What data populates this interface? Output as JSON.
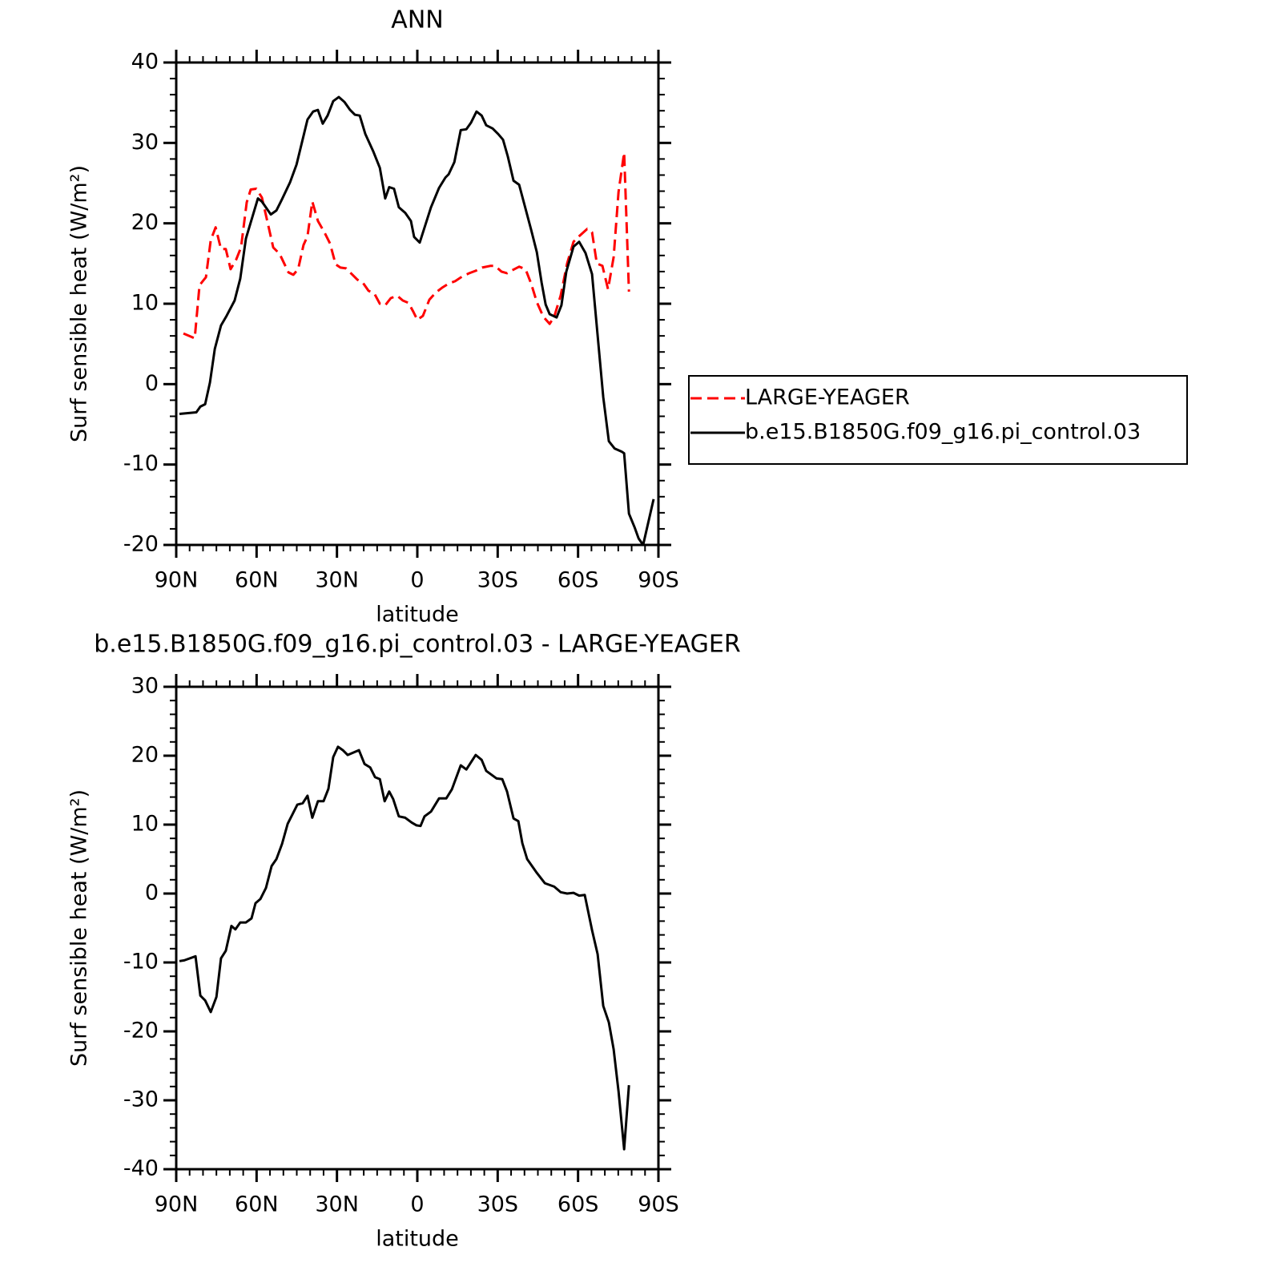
{
  "chart_data": [
    {
      "type": "line",
      "title": "ANN",
      "ylabel": "Surf sensible heat (W/m²)",
      "xlabel": "latitude",
      "xlim": [
        90,
        -90
      ],
      "xticks": [
        {
          "value": 90,
          "label": "90N"
        },
        {
          "value": 60,
          "label": "60N"
        },
        {
          "value": 30,
          "label": "30N"
        },
        0,
        {
          "value": -30,
          "label": "30S"
        },
        {
          "value": -60,
          "label": "60S"
        },
        {
          "value": -90,
          "label": "90S"
        }
      ],
      "ylim": [
        -20,
        40
      ],
      "yticks": [
        -20,
        -10,
        0,
        10,
        20,
        30,
        40
      ],
      "legend": "right",
      "series": [
        {
          "name": "LARGE-YEAGER",
          "color": "#ff0000",
          "dash": true,
          "x": [
            87.3,
            85.2,
            83.1,
            81.3,
            78.9,
            77.1,
            75.3,
            73.3,
            71.5,
            69.7,
            67.6,
            65.8,
            63.7,
            62.2,
            60.1,
            58,
            55.6,
            53.8,
            51.4,
            48.1,
            46.3,
            44.5,
            42.5,
            41,
            39.2,
            37.1,
            34.7,
            32.6,
            30.5,
            28.7,
            26.6,
            24.2,
            22.4,
            20.3,
            18.2,
            16.1,
            14,
            12,
            9.9,
            7.5,
            5.4,
            3.3,
            1.5,
            0,
            -2.1,
            -4.5,
            -6.9,
            -9.3,
            -11.7,
            -14.1,
            -16.8,
            -19.4,
            -21.8,
            -24.2,
            -27.2,
            -29,
            -31.4,
            -33.5,
            -35.6,
            -38,
            -40.4,
            -42.5,
            -44.6,
            -47,
            -49.4,
            -51.1,
            -53.5,
            -55.9,
            -58.3,
            -60.4,
            -63.4,
            -65.2,
            -67,
            -69.1,
            -71.2,
            -73.3,
            -75.1,
            -77.2,
            -79
          ],
          "values": [
            6.3,
            6,
            5.7,
            12.3,
            13.3,
            17.9,
            19.5,
            16.8,
            16.8,
            14.3,
            15.5,
            17,
            22.6,
            24.2,
            24.3,
            23.2,
            19.7,
            17,
            16.2,
            13.9,
            13.6,
            14.3,
            17.3,
            18.4,
            22.7,
            20.3,
            18.9,
            17.5,
            14.9,
            14.5,
            14.4,
            13.6,
            13,
            12.6,
            11.6,
            11.3,
            10,
            9.8,
            10.7,
            11,
            10.4,
            10.1,
            9,
            8,
            8.5,
            10.5,
            11.4,
            12,
            12.5,
            12.8,
            13.4,
            13.8,
            14.1,
            14.5,
            14.7,
            14.7,
            14,
            13.8,
            14.2,
            14.6,
            14.3,
            12.5,
            10.2,
            8.4,
            7.5,
            8.4,
            11,
            15,
            17.7,
            18.4,
            19.3,
            18.9,
            15,
            14.7,
            11.8,
            15.8,
            23.9,
            28.8,
            11.5
          ]
        },
        {
          "name": "b.e15.B1850G.f09_g16.pi_control.03",
          "color": "#000000",
          "dash": false,
          "x": [
            88.8,
            82.5,
            81,
            79.2,
            77.4,
            75.6,
            73.3,
            71.2,
            68.2,
            66.1,
            64,
            59.5,
            58,
            54.7,
            52.6,
            50.5,
            47.5,
            45.1,
            41,
            38.9,
            37.1,
            35.3,
            33.5,
            31.4,
            29.3,
            27.2,
            25.1,
            23.3,
            21.5,
            19.4,
            16.4,
            14,
            12,
            10.5,
            8.7,
            6.9,
            4.5,
            2.4,
            1.2,
            -0.9,
            -5.1,
            -8.1,
            -10.5,
            -11.7,
            -13.8,
            -16.2,
            -18.3,
            -20,
            -22.1,
            -24,
            -25.7,
            -28.1,
            -30.2,
            -32,
            -33.8,
            -35.9,
            -38,
            -42.5,
            -44.6,
            -46.4,
            -47.9,
            -49.4,
            -52,
            -53.8,
            -55.6,
            -58.3,
            -60.4,
            -62.8,
            -65.2,
            -69.4,
            -71.5,
            -73.6,
            -76.3,
            -77.2,
            -79,
            -81.1,
            -82.6,
            -84.3,
            -88.2
          ],
          "values": [
            -3.7,
            -3.5,
            -2.8,
            -2.5,
            0.2,
            4.4,
            7.3,
            8.5,
            10.4,
            13.1,
            18.1,
            23.1,
            22.7,
            21.1,
            21.6,
            23,
            25.1,
            27.3,
            32.9,
            33.9,
            34.1,
            32.4,
            33.4,
            35.2,
            35.7,
            35.1,
            34.1,
            33.5,
            33.4,
            31.1,
            28.9,
            26.9,
            23.1,
            24.5,
            24.3,
            22,
            21.3,
            20.3,
            18.3,
            17.6,
            22,
            24.4,
            25.7,
            26.1,
            27.6,
            31.6,
            31.7,
            32.5,
            33.9,
            33.4,
            32.2,
            31.8,
            31.1,
            30.4,
            28.3,
            25.3,
            24.8,
            19.2,
            16.4,
            12.6,
            9.9,
            8.7,
            8.3,
            9.8,
            14,
            17.1,
            17.7,
            16.3,
            13.7,
            -1.6,
            -7.1,
            -8,
            -8.4,
            -8.6,
            -16.1,
            -17.8,
            -19.2,
            -20,
            -14.3
          ]
        }
      ]
    },
    {
      "type": "line",
      "title": "b.e15.B1850G.f09_g16.pi_control.03 - LARGE-YEAGER",
      "ylabel": "Surf sensible heat (W/m²)",
      "xlabel": "latitude",
      "xlim": [
        90,
        -90
      ],
      "xticks": [
        {
          "value": 90,
          "label": "90N"
        },
        {
          "value": 60,
          "label": "60N"
        },
        {
          "value": 30,
          "label": "30N"
        },
        0,
        {
          "value": -30,
          "label": "30S"
        },
        {
          "value": -60,
          "label": "60S"
        },
        {
          "value": -90,
          "label": "90S"
        }
      ],
      "ylim": [
        -40,
        30
      ],
      "yticks": [
        -40,
        -30,
        -20,
        -10,
        0,
        10,
        20,
        30
      ],
      "series": [
        {
          "color": "#000000",
          "dash": false,
          "x": [
            88.8,
            87,
            82.8,
            81,
            79.2,
            77.1,
            75,
            73.3,
            71.5,
            69.4,
            67.9,
            66.1,
            64,
            61.9,
            60.4,
            58.6,
            56.5,
            54.4,
            52.6,
            50.5,
            48.4,
            44.8,
            42.8,
            41,
            39.2,
            37.1,
            35,
            33.2,
            31.4,
            29.6,
            27.8,
            26,
            21.8,
            19.7,
            17.6,
            15.8,
            14,
            12.2,
            10.5,
            9,
            6.9,
            4.5,
            2.1,
            0.3,
            -1.2,
            -2.7,
            -5.1,
            -8.1,
            -10.8,
            -12.9,
            -16.2,
            -18.3,
            -21.8,
            -24,
            -25.7,
            -29.6,
            -31.7,
            -33.5,
            -35.9,
            -37.7,
            -39.2,
            -41,
            -44.6,
            -47.6,
            -51.1,
            -53.5,
            -55.9,
            -58.3,
            -60.4,
            -62.5,
            -65.2,
            -67.3,
            -69.4,
            -71.5,
            -73.3,
            -75.1,
            -77.2,
            -79
          ],
          "values": [
            -9.8,
            -9.7,
            -9.1,
            -14.8,
            -15.5,
            -17.2,
            -15,
            -9.4,
            -8.3,
            -4.7,
            -5.2,
            -4.2,
            -4.2,
            -3.6,
            -1.4,
            -0.8,
            0.8,
            4,
            5,
            7.2,
            10.1,
            12.9,
            13.1,
            14.2,
            11,
            13.4,
            13.4,
            15.2,
            19.8,
            21.3,
            20.8,
            20.1,
            20.8,
            18.8,
            18.3,
            16.9,
            16.6,
            13.4,
            14.8,
            13.7,
            11.2,
            11,
            10.3,
            9.9,
            9.8,
            11.2,
            11.9,
            13.8,
            13.8,
            15.1,
            18.6,
            18,
            20.1,
            19.4,
            17.8,
            16.7,
            16.6,
            14.8,
            10.9,
            10.5,
            7.3,
            5,
            3,
            1.5,
            1,
            0.2,
            0,
            0.1,
            -0.3,
            -0.2,
            -5.3,
            -8.8,
            -16.3,
            -18.7,
            -22.6,
            -28.7,
            -37.1,
            -27.8
          ]
        }
      ]
    }
  ]
}
